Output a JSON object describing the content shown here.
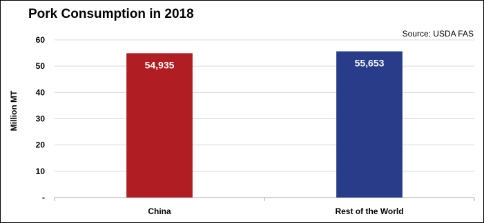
{
  "chart_data": {
    "type": "bar",
    "title": "Pork Consumption in 2018",
    "source_note": "Source: USDA FAS",
    "xlabel": "",
    "ylabel": "Million MT",
    "ylim": [
      0,
      60
    ],
    "yticks": [
      0,
      10,
      20,
      30,
      40,
      50,
      60
    ],
    "ytick_labels": [
      "-",
      "10",
      "20",
      "30",
      "40",
      "50",
      "60"
    ],
    "grid": true,
    "categories": [
      "China",
      "Rest of the World"
    ],
    "values": [
      54.935,
      55.653
    ],
    "data_labels": [
      "54,935",
      "55,653"
    ],
    "colors": [
      "#B01E23",
      "#283C8A"
    ]
  }
}
